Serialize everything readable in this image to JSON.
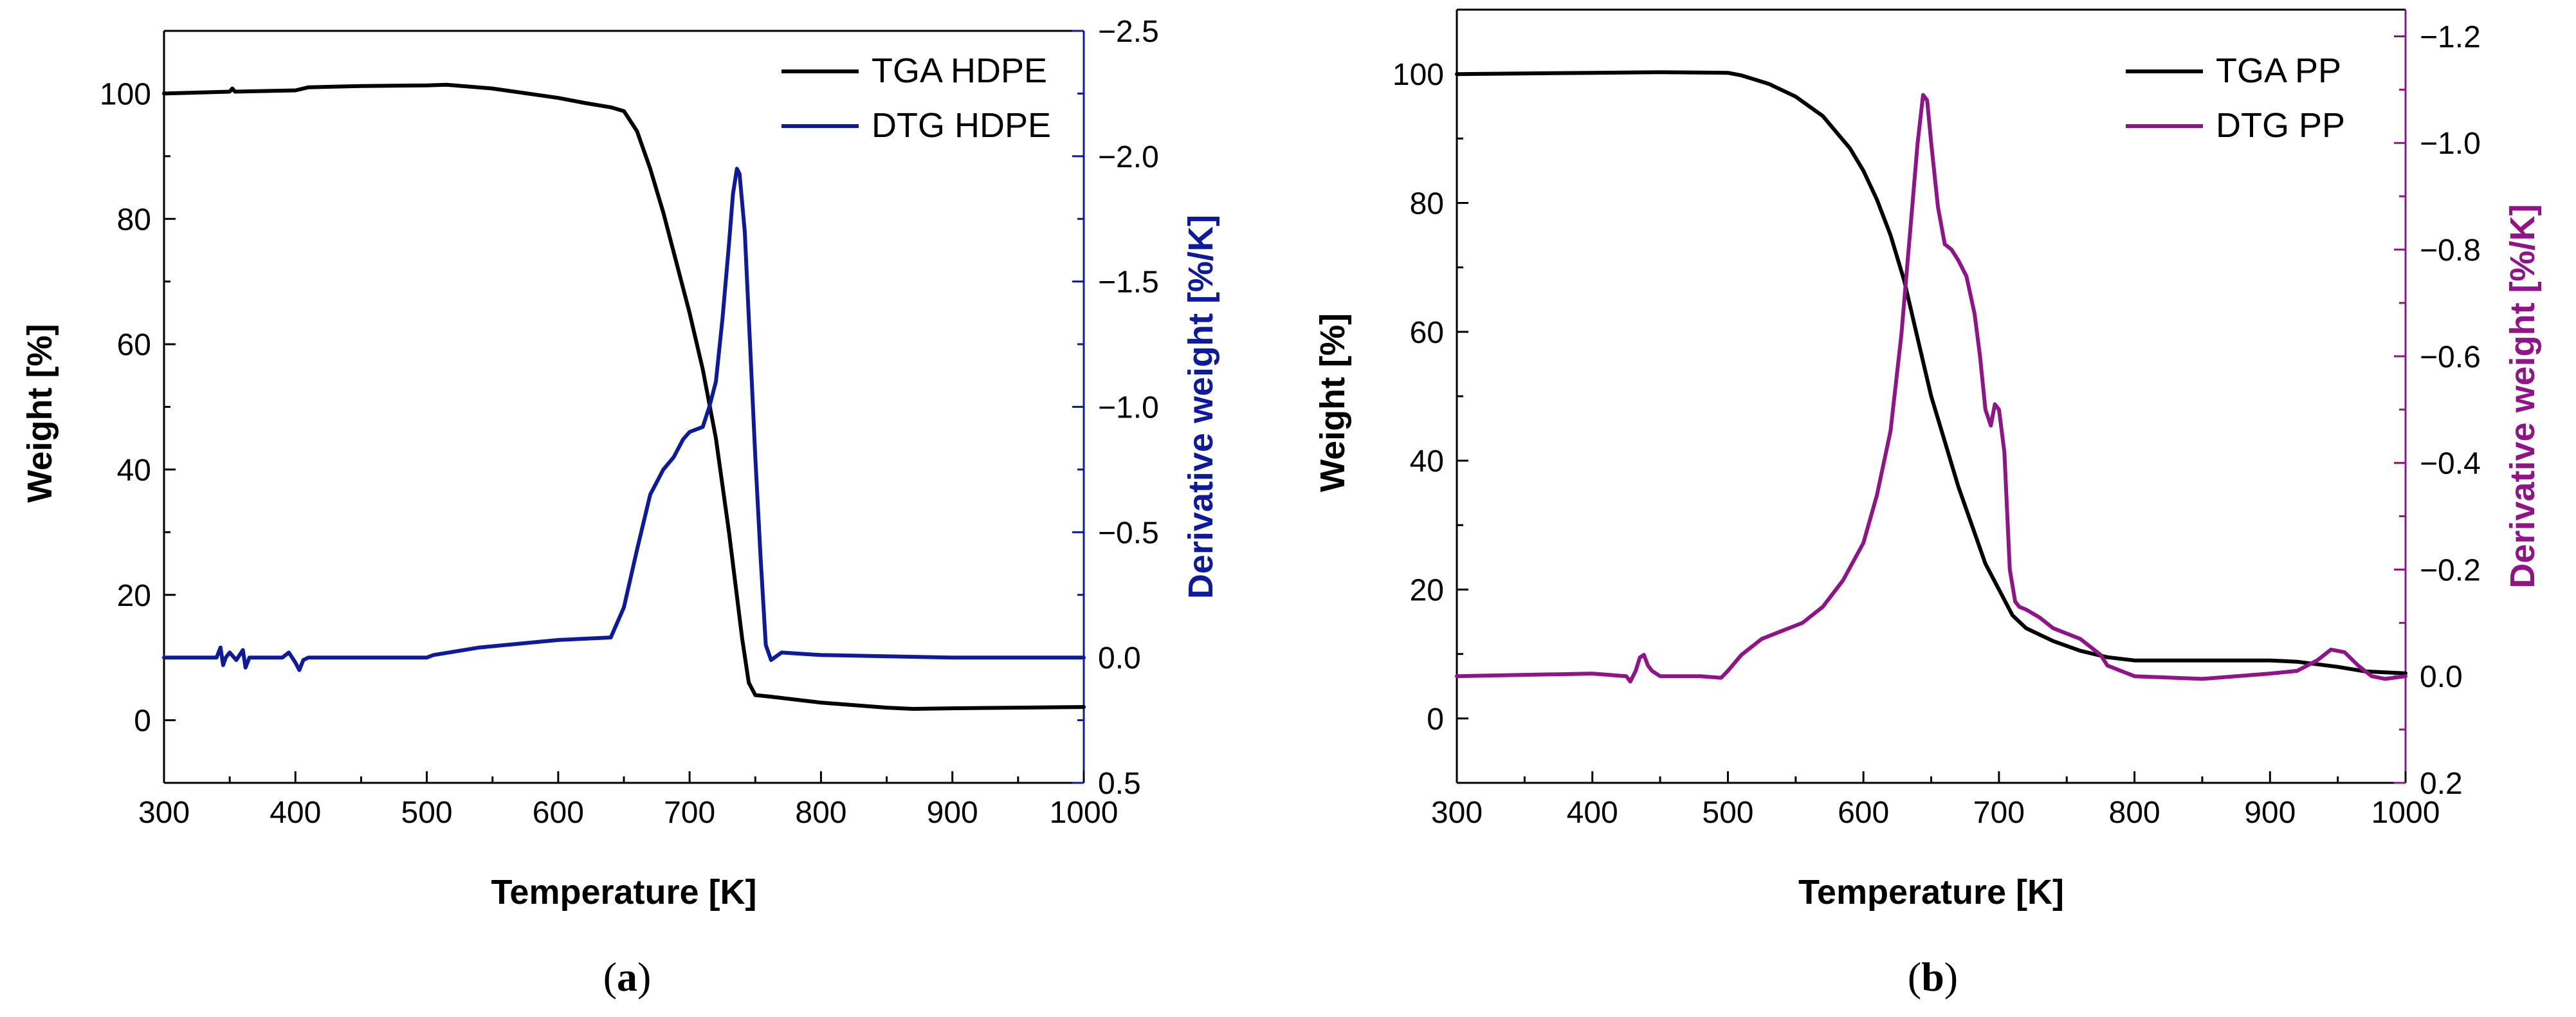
{
  "colors": {
    "black": "#000000",
    "blue": "#0d1a9c",
    "purple": "#8f1487"
  },
  "chart_data": [
    {
      "type": "line",
      "caption_letter": "a",
      "xlabel": "Temperature [K]",
      "ylabel": "Weight [%]",
      "y2label": "Derivative weight [%/K]",
      "xlim": [
        300,
        1000
      ],
      "ylim": [
        -10,
        110
      ],
      "y2lim": [
        0.5,
        -2.5
      ],
      "xticks": [
        300,
        400,
        500,
        600,
        700,
        800,
        900,
        1000
      ],
      "yticks": [
        0,
        20,
        40,
        60,
        80,
        100
      ],
      "y2ticks": [
        0.5,
        0.0,
        -0.5,
        -1.0,
        -1.5,
        -2.0,
        -2.5
      ],
      "y2tick_labels": [
        "0.5",
        "0.0",
        "−0.5",
        "−1.0",
        "−1.5",
        "−2.0",
        "−2.5"
      ],
      "legend_position": "top-right",
      "series": [
        {
          "name": "TGA HDPE",
          "axis": "left",
          "color": "#000000",
          "x": [
            300,
            350,
            352,
            354,
            400,
            410,
            450,
            500,
            515,
            550,
            600,
            620,
            640,
            650,
            660,
            670,
            680,
            690,
            700,
            710,
            720,
            730,
            740,
            745,
            750,
            760,
            800,
            850,
            870,
            900,
            950,
            1000
          ],
          "y": [
            100,
            100.3,
            100.8,
            100.3,
            100.5,
            101,
            101.2,
            101.3,
            101.4,
            100.8,
            99.3,
            98.5,
            97.8,
            97.2,
            94,
            88,
            81,
            73,
            65,
            56,
            45,
            30,
            13,
            6,
            4,
            3.8,
            2.8,
            2.0,
            1.8,
            1.9,
            2.0,
            2.1
          ]
        },
        {
          "name": "DTG HDPE",
          "axis": "right",
          "color": "#0d1a9c",
          "x": [
            300,
            340,
            343,
            345,
            347,
            350,
            355,
            360,
            362,
            365,
            390,
            395,
            400,
            403,
            406,
            410,
            450,
            500,
            505,
            540,
            600,
            640,
            650,
            660,
            670,
            680,
            688,
            695,
            700,
            710,
            715,
            720,
            725,
            730,
            733,
            736,
            738,
            742,
            746,
            750,
            754,
            758,
            762,
            770,
            800,
            900,
            1000
          ],
          "y": [
            0,
            0,
            -0.04,
            0.03,
            0,
            -0.02,
            0.01,
            -0.03,
            0.04,
            0,
            0,
            -0.02,
            0.02,
            0.05,
            0.01,
            0,
            0,
            0,
            -0.01,
            -0.04,
            -0.07,
            -0.08,
            -0.2,
            -0.43,
            -0.65,
            -0.75,
            -0.8,
            -0.87,
            -0.9,
            -0.92,
            -1.0,
            -1.1,
            -1.35,
            -1.65,
            -1.85,
            -1.95,
            -1.93,
            -1.7,
            -1.25,
            -0.8,
            -0.4,
            -0.05,
            0.01,
            -0.02,
            -0.01,
            0,
            0
          ]
        }
      ]
    },
    {
      "type": "line",
      "caption_letter": "b",
      "xlabel": "Temperature [K]",
      "ylabel": "Weight [%]",
      "y2label": "Derivative weight [%/K]",
      "xlim": [
        300,
        1000
      ],
      "ylim": [
        -10,
        110
      ],
      "y2lim": [
        0.2,
        -1.25
      ],
      "xticks": [
        300,
        400,
        500,
        600,
        700,
        800,
        900,
        1000
      ],
      "yticks": [
        0,
        20,
        40,
        60,
        80,
        100
      ],
      "y2ticks": [
        0.2,
        0.0,
        -0.2,
        -0.4,
        -0.6,
        -0.8,
        -1.0,
        -1.2
      ],
      "y2tick_labels": [
        "0.2",
        "0.0",
        "−0.2",
        "−0.4",
        "−0.6",
        "−0.8",
        "−1.0",
        "−1.2"
      ],
      "legend_position": "top-right",
      "series": [
        {
          "name": "TGA PP",
          "axis": "left",
          "color": "#000000",
          "x": [
            300,
            400,
            450,
            500,
            510,
            530,
            550,
            570,
            590,
            600,
            610,
            620,
            630,
            640,
            650,
            660,
            670,
            680,
            690,
            700,
            710,
            720,
            740,
            760,
            780,
            800,
            900,
            920,
            950,
            970,
            1000
          ],
          "y": [
            100,
            100.2,
            100.3,
            100.2,
            99.8,
            98.5,
            96.5,
            93.5,
            88.5,
            85,
            80.5,
            75,
            68,
            59,
            50,
            43,
            36,
            30,
            24,
            20,
            16,
            14,
            12,
            10.5,
            9.5,
            9,
            9,
            8.8,
            8.0,
            7.3,
            7.0
          ]
        },
        {
          "name": "DTG PP",
          "axis": "right",
          "color": "#8f1487",
          "x": [
            300,
            400,
            425,
            428,
            432,
            435,
            438,
            441,
            444,
            450,
            480,
            495,
            500,
            510,
            525,
            540,
            555,
            570,
            585,
            600,
            610,
            620,
            628,
            635,
            640,
            644,
            647,
            650,
            655,
            660,
            665,
            670,
            676,
            682,
            686,
            690,
            694,
            697,
            700,
            704,
            708,
            712,
            715,
            720,
            730,
            740,
            760,
            775,
            780,
            790,
            800,
            850,
            900,
            920,
            935,
            945,
            955,
            965,
            975,
            985,
            1000
          ],
          "y": [
            0,
            -0.005,
            0,
            0.01,
            -0.01,
            -0.035,
            -0.04,
            -0.02,
            -0.01,
            0,
            0,
            0.003,
            -0.01,
            -0.04,
            -0.07,
            -0.085,
            -0.1,
            -0.13,
            -0.18,
            -0.25,
            -0.34,
            -0.46,
            -0.64,
            -0.85,
            -1.0,
            -1.09,
            -1.08,
            -1.0,
            -0.88,
            -0.81,
            -0.8,
            -0.78,
            -0.75,
            -0.68,
            -0.6,
            -0.5,
            -0.47,
            -0.51,
            -0.5,
            -0.42,
            -0.2,
            -0.14,
            -0.13,
            -0.125,
            -0.11,
            -0.09,
            -0.07,
            -0.04,
            -0.02,
            -0.01,
            0,
            0.005,
            -0.005,
            -0.01,
            -0.03,
            -0.05,
            -0.045,
            -0.02,
            0,
            0.005,
            0
          ]
        }
      ]
    }
  ]
}
